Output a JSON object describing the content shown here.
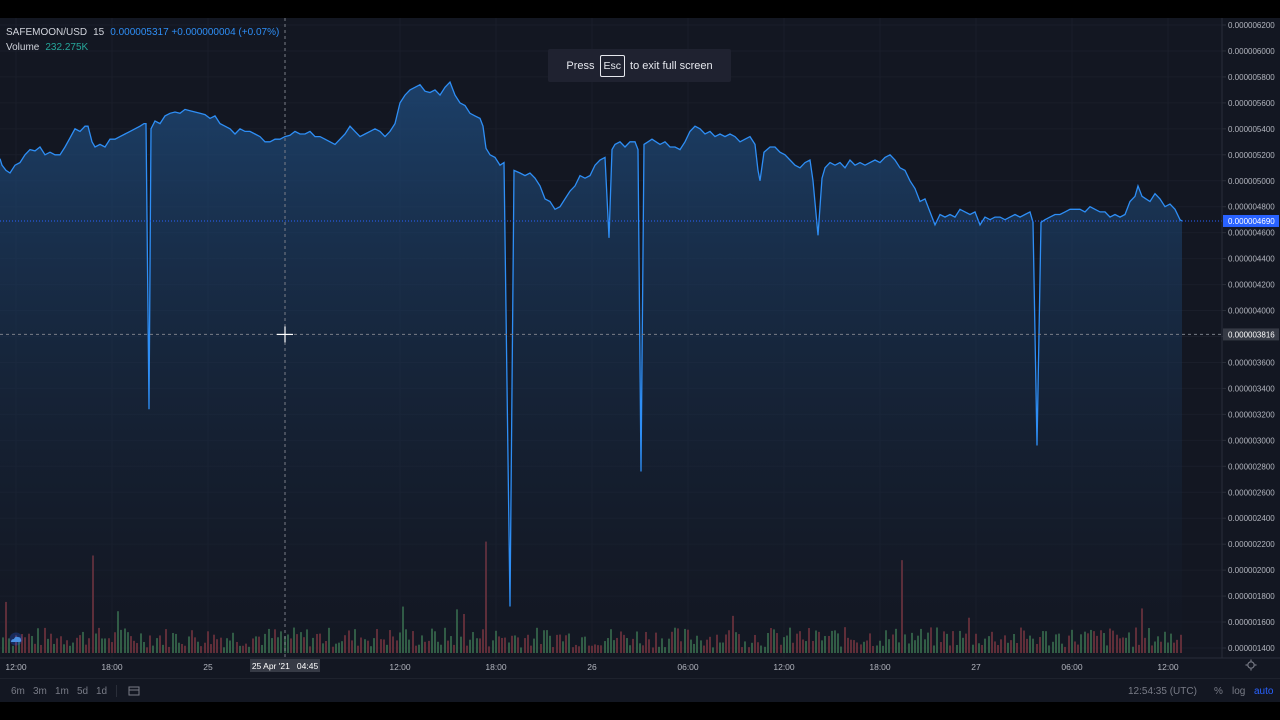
{
  "legend": {
    "symbol": "SAFEMOON/USD",
    "interval": "15",
    "price_change": "0.000005317 +0.000000004 (+0.07%)",
    "volume_label": "Volume",
    "volume_value": "232.275K"
  },
  "fullscreen_toast": {
    "press": "Press",
    "key": "Esc",
    "rest": "to exit full screen"
  },
  "price_axis": {
    "ticks": [
      "0.000006200",
      "0.000006000",
      "0.000005800",
      "0.000005600",
      "0.000005400",
      "0.000005200",
      "0.000005000",
      "0.000004800",
      "0.000004600",
      "0.000004400",
      "0.000004200",
      "0.000004000",
      "0.000003800",
      "0.000003600",
      "0.000003400",
      "0.000003200",
      "0.000003000",
      "0.000002800",
      "0.000002600",
      "0.000002400",
      "0.000002200",
      "0.000002000",
      "0.000001800",
      "0.000001600",
      "0.000001400"
    ],
    "current_price_label": "0.000004690",
    "crosshair_price_label": "0.000003816"
  },
  "time_axis": {
    "ticks": [
      "12:00",
      "18:00",
      "25",
      "12:00",
      "18:00",
      "26",
      "06:00",
      "12:00",
      "18:00",
      "27",
      "06:00",
      "12:00"
    ],
    "crosshair_label": "25 Apr '21   04:45"
  },
  "toolbar": {
    "ranges": [
      "6m",
      "3m",
      "1m",
      "5d",
      "1d"
    ],
    "clock": "12:54:35 (UTC)",
    "percent": "%",
    "log": "log",
    "auto": "auto"
  },
  "colors": {
    "background": "#131722",
    "line": "#2e8ef5",
    "volume_up": "#3c7552",
    "volume_down": "#7b3540",
    "price_badge": "#2962ff",
    "crosshair_badge": "#363a45"
  },
  "chart_data": {
    "type": "line",
    "title": "",
    "xlabel": "",
    "ylabel": "",
    "ylim": [
      1.4e-06,
      6.2e-06
    ],
    "series": [
      {
        "name": "SAFEMOON/USD",
        "points": [
          [
            0,
            5.17
          ],
          [
            2,
            5.12
          ],
          [
            6,
            5.08
          ],
          [
            10,
            5.06
          ],
          [
            15,
            5.12
          ],
          [
            20,
            5.14
          ],
          [
            25,
            5.2
          ],
          [
            30,
            5.24
          ],
          [
            35,
            5.23
          ],
          [
            40,
            5.26
          ],
          [
            45,
            5.2
          ],
          [
            50,
            5.22
          ],
          [
            55,
            5.2
          ],
          [
            60,
            5.2
          ],
          [
            65,
            5.26
          ],
          [
            70,
            5.33
          ],
          [
            75,
            5.4
          ],
          [
            80,
            5.38
          ],
          [
            85,
            5.42
          ],
          [
            88,
            5.42
          ],
          [
            92,
            5.3
          ],
          [
            95,
            5.26
          ],
          [
            100,
            5.28
          ],
          [
            105,
            5.26
          ],
          [
            110,
            5.32
          ],
          [
            115,
            5.32
          ],
          [
            120,
            5.34
          ],
          [
            125,
            5.36
          ],
          [
            130,
            5.38
          ],
          [
            135,
            5.4
          ],
          [
            140,
            5.42
          ],
          [
            144,
            5.44
          ],
          [
            146,
            5.44
          ],
          [
            149,
            3.24
          ],
          [
            151,
            5.4
          ],
          [
            155,
            5.46
          ],
          [
            160,
            5.44
          ],
          [
            165,
            5.5
          ],
          [
            170,
            5.52
          ],
          [
            175,
            5.53
          ],
          [
            180,
            5.52
          ],
          [
            185,
            5.55
          ],
          [
            190,
            5.54
          ],
          [
            195,
            5.53
          ],
          [
            200,
            5.52
          ],
          [
            205,
            5.51
          ],
          [
            210,
            5.48
          ],
          [
            215,
            5.5
          ],
          [
            220,
            5.44
          ],
          [
            225,
            5.42
          ],
          [
            230,
            5.4
          ],
          [
            235,
            5.36
          ],
          [
            240,
            5.4
          ],
          [
            245,
            5.38
          ],
          [
            250,
            5.38
          ],
          [
            255,
            5.36
          ],
          [
            260,
            5.34
          ],
          [
            265,
            5.3
          ],
          [
            270,
            5.3
          ],
          [
            275,
            5.32
          ],
          [
            280,
            5.32
          ],
          [
            285,
            5.34
          ],
          [
            290,
            5.35
          ],
          [
            295,
            5.38
          ],
          [
            300,
            5.36
          ],
          [
            305,
            5.36
          ],
          [
            310,
            5.38
          ],
          [
            315,
            5.34
          ],
          [
            320,
            5.34
          ],
          [
            325,
            5.32
          ],
          [
            330,
            5.3
          ],
          [
            335,
            5.28
          ],
          [
            340,
            5.32
          ],
          [
            345,
            5.36
          ],
          [
            350,
            5.42
          ],
          [
            355,
            5.38
          ],
          [
            360,
            5.34
          ],
          [
            365,
            5.36
          ],
          [
            370,
            5.38
          ],
          [
            375,
            5.4
          ],
          [
            380,
            5.38
          ],
          [
            385,
            5.34
          ],
          [
            390,
            5.38
          ],
          [
            395,
            5.44
          ],
          [
            400,
            5.6
          ],
          [
            405,
            5.66
          ],
          [
            410,
            5.7
          ],
          [
            415,
            5.72
          ],
          [
            420,
            5.74
          ],
          [
            425,
            5.69
          ],
          [
            430,
            5.68
          ],
          [
            435,
            5.7
          ],
          [
            440,
            5.66
          ],
          [
            445,
            5.72
          ],
          [
            450,
            5.76
          ],
          [
            455,
            5.66
          ],
          [
            460,
            5.6
          ],
          [
            465,
            5.58
          ],
          [
            470,
            5.52
          ],
          [
            475,
            5.5
          ],
          [
            480,
            5.48
          ],
          [
            483,
            5.42
          ],
          [
            486,
            5.25
          ],
          [
            490,
            5.2
          ],
          [
            495,
            5.18
          ],
          [
            500,
            5.12
          ],
          [
            504,
            5.14
          ],
          [
            510,
            1.72
          ],
          [
            514,
            5.08
          ],
          [
            520,
            5.06
          ],
          [
            525,
            5.04
          ],
          [
            530,
            5.06
          ],
          [
            535,
            5.02
          ],
          [
            540,
            4.96
          ],
          [
            545,
            4.86
          ],
          [
            550,
            4.84
          ],
          [
            555,
            4.78
          ],
          [
            560,
            4.8
          ],
          [
            565,
            4.86
          ],
          [
            570,
            4.92
          ],
          [
            575,
            4.96
          ],
          [
            580,
            5.04
          ],
          [
            585,
            5.02
          ],
          [
            590,
            5.04
          ],
          [
            595,
            5.12
          ],
          [
            600,
            5.16
          ],
          [
            605,
            5.18
          ],
          [
            609,
            4.56
          ],
          [
            612,
            5.24
          ],
          [
            615,
            5.28
          ],
          [
            620,
            5.3
          ],
          [
            625,
            5.26
          ],
          [
            630,
            5.3
          ],
          [
            635,
            5.3
          ],
          [
            638,
            5.24
          ],
          [
            641,
            2.76
          ],
          [
            644,
            5.28
          ],
          [
            648,
            5.3
          ],
          [
            652,
            5.32
          ],
          [
            656,
            5.3
          ],
          [
            660,
            5.28
          ],
          [
            665,
            5.3
          ],
          [
            670,
            5.26
          ],
          [
            675,
            5.26
          ],
          [
            680,
            5.24
          ],
          [
            685,
            5.3
          ],
          [
            690,
            5.38
          ],
          [
            695,
            5.42
          ],
          [
            700,
            5.4
          ],
          [
            705,
            5.36
          ],
          [
            710,
            5.38
          ],
          [
            715,
            5.34
          ],
          [
            720,
            5.36
          ],
          [
            725,
            5.34
          ],
          [
            730,
            5.36
          ],
          [
            735,
            5.34
          ],
          [
            740,
            5.3
          ],
          [
            745,
            5.32
          ],
          [
            750,
            5.34
          ],
          [
            755,
            5.28
          ],
          [
            758,
            5.08
          ],
          [
            760,
            5.0
          ],
          [
            764,
            5.22
          ],
          [
            770,
            5.26
          ],
          [
            775,
            5.26
          ],
          [
            780,
            5.22
          ],
          [
            785,
            5.2
          ],
          [
            790,
            5.16
          ],
          [
            795,
            5.12
          ],
          [
            800,
            5.1
          ],
          [
            805,
            5.14
          ],
          [
            810,
            5.16
          ],
          [
            813,
            5.0
          ],
          [
            818,
            4.58
          ],
          [
            822,
            5.02
          ],
          [
            825,
            5.1
          ],
          [
            830,
            5.14
          ],
          [
            835,
            5.12
          ],
          [
            840,
            5.14
          ],
          [
            845,
            5.1
          ],
          [
            850,
            5.16
          ],
          [
            855,
            5.12
          ],
          [
            860,
            5.14
          ],
          [
            865,
            5.12
          ],
          [
            870,
            5.14
          ],
          [
            875,
            5.16
          ],
          [
            880,
            5.14
          ],
          [
            885,
            5.18
          ],
          [
            890,
            5.2
          ],
          [
            895,
            5.16
          ],
          [
            900,
            5.1
          ],
          [
            905,
            5.08
          ],
          [
            910,
            5.0
          ],
          [
            915,
            4.94
          ],
          [
            920,
            4.84
          ],
          [
            925,
            4.86
          ],
          [
            930,
            4.76
          ],
          [
            935,
            4.66
          ],
          [
            940,
            4.74
          ],
          [
            945,
            4.72
          ],
          [
            950,
            4.74
          ],
          [
            955,
            4.72
          ],
          [
            960,
            4.78
          ],
          [
            965,
            4.76
          ],
          [
            970,
            4.74
          ],
          [
            975,
            4.76
          ],
          [
            980,
            4.66
          ],
          [
            985,
            4.72
          ],
          [
            990,
            4.7
          ],
          [
            995,
            4.72
          ],
          [
            1000,
            4.72
          ],
          [
            1005,
            4.7
          ],
          [
            1010,
            4.72
          ],
          [
            1015,
            4.74
          ],
          [
            1020,
            4.72
          ],
          [
            1025,
            4.74
          ],
          [
            1030,
            4.76
          ],
          [
            1033,
            4.68
          ],
          [
            1037,
            2.96
          ],
          [
            1041,
            4.68
          ],
          [
            1045,
            4.7
          ],
          [
            1050,
            4.72
          ],
          [
            1055,
            4.74
          ],
          [
            1060,
            4.74
          ],
          [
            1065,
            4.76
          ],
          [
            1070,
            4.78
          ],
          [
            1075,
            4.78
          ],
          [
            1080,
            4.78
          ],
          [
            1085,
            4.76
          ],
          [
            1090,
            4.8
          ],
          [
            1095,
            4.78
          ],
          [
            1100,
            4.76
          ],
          [
            1105,
            4.76
          ],
          [
            1110,
            4.72
          ],
          [
            1115,
            4.74
          ],
          [
            1120,
            4.72
          ],
          [
            1125,
            4.74
          ],
          [
            1130,
            4.84
          ],
          [
            1135,
            4.88
          ],
          [
            1138,
            4.96
          ],
          [
            1142,
            4.88
          ],
          [
            1146,
            4.86
          ],
          [
            1150,
            4.84
          ],
          [
            1155,
            4.9
          ],
          [
            1160,
            4.86
          ],
          [
            1165,
            4.8
          ],
          [
            1170,
            4.82
          ],
          [
            1175,
            4.78
          ],
          [
            1180,
            4.7
          ],
          [
            1182,
            4.69
          ]
        ]
      }
    ],
    "volume": {
      "ylim": [
        0,
        140
      ],
      "tall_bars": [
        [
          4,
          55
        ],
        [
          93,
          105
        ],
        [
          117,
          45
        ],
        [
          401,
          50
        ],
        [
          456,
          47
        ],
        [
          462,
          42
        ],
        [
          485,
          120
        ],
        [
          733,
          40
        ],
        [
          900,
          100
        ],
        [
          968,
          38
        ],
        [
          1140,
          48
        ]
      ]
    }
  }
}
